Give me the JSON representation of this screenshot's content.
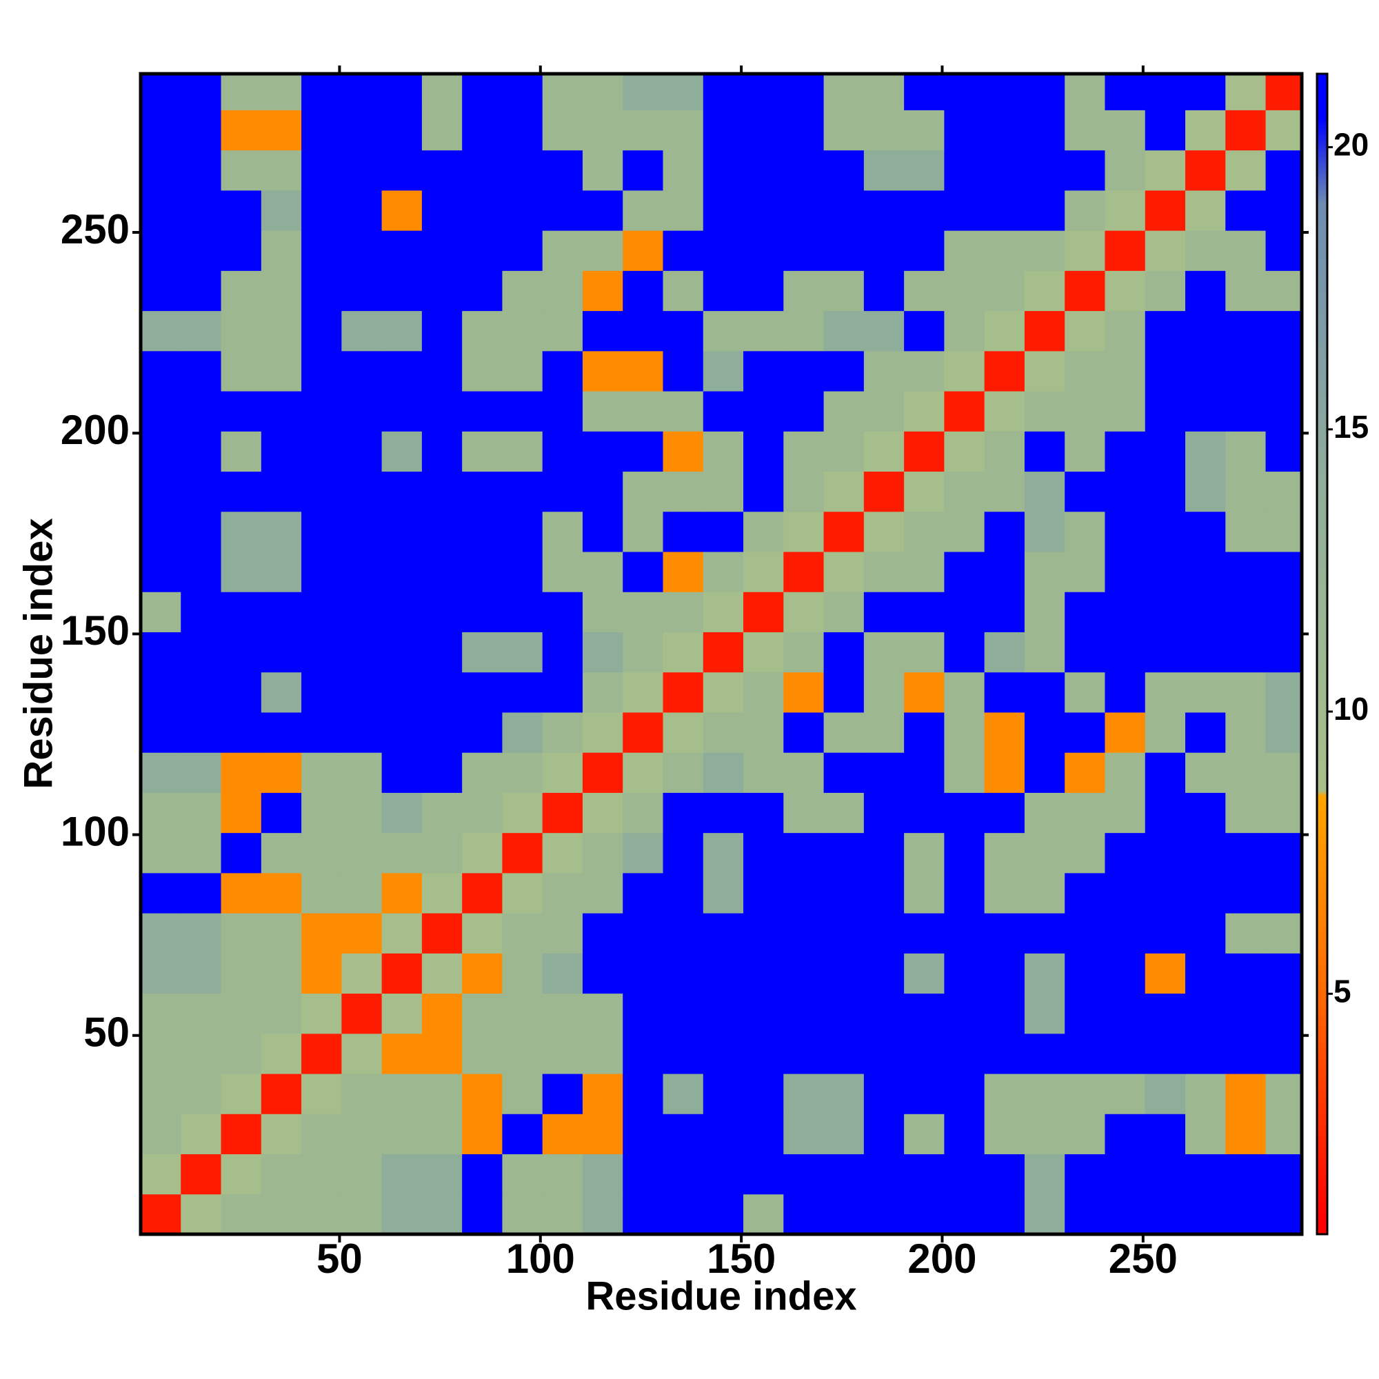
{
  "chart_data": {
    "type": "heatmap",
    "x_label": "Residue index",
    "y_label": "Residue index",
    "x": [
      5.5,
      15.5,
      25.5,
      35.5,
      45.5,
      55.5,
      65.5,
      75.5,
      85.5,
      95.5,
      105.5,
      115.5,
      125.5,
      135.5,
      145.5,
      155.5,
      165.5,
      175.5,
      185.5,
      195.5,
      205.5,
      215.5,
      225.5,
      235.5,
      245.5,
      255.5,
      265.5,
      275.5,
      285.5
    ],
    "y": [
      5.5,
      15.5,
      25.5,
      35.5,
      45.5,
      55.5,
      65.5,
      75.5,
      85.5,
      95.5,
      105.5,
      115.5,
      125.5,
      135.5,
      145.5,
      155.5,
      165.5,
      175.5,
      185.5,
      195.5,
      205.5,
      215.5,
      225.5,
      235.5,
      245.5,
      255.5,
      265.5,
      275.5,
      285.5
    ],
    "z": [
      [
        2,
        9,
        11,
        11,
        11,
        11,
        14,
        14,
        21,
        11,
        11,
        14,
        21,
        21,
        21,
        11,
        21,
        21,
        21,
        21,
        21,
        21,
        14,
        21,
        21,
        21,
        21,
        21,
        21
      ],
      [
        9,
        2,
        9,
        11,
        11,
        11,
        14,
        14,
        21,
        11,
        11,
        14,
        21,
        21,
        21,
        21,
        21,
        21,
        21,
        21,
        21,
        21,
        14,
        21,
        21,
        21,
        21,
        21,
        21
      ],
      [
        11,
        9,
        2,
        9,
        11,
        11,
        11,
        11,
        7,
        21,
        7,
        7,
        21,
        21,
        21,
        21,
        14,
        14,
        21,
        11,
        21,
        11,
        11,
        11,
        21,
        21,
        11,
        7,
        11
      ],
      [
        11,
        11,
        9,
        2,
        9,
        11,
        11,
        11,
        7,
        11,
        21,
        7,
        21,
        14,
        21,
        21,
        14,
        14,
        21,
        21,
        21,
        11,
        11,
        11,
        11,
        14,
        11,
        7,
        11
      ],
      [
        11,
        11,
        11,
        9,
        2,
        9,
        7,
        7,
        11,
        11,
        11,
        11,
        21,
        21,
        21,
        21,
        21,
        21,
        21,
        21,
        21,
        21,
        21,
        21,
        21,
        21,
        21,
        21,
        21
      ],
      [
        11,
        11,
        11,
        11,
        9,
        2,
        9,
        7,
        11,
        11,
        11,
        11,
        21,
        21,
        21,
        21,
        21,
        21,
        21,
        21,
        21,
        21,
        14,
        21,
        21,
        21,
        21,
        21,
        21
      ],
      [
        14,
        14,
        11,
        11,
        7,
        9,
        2,
        9,
        7,
        11,
        14,
        21,
        21,
        21,
        21,
        21,
        21,
        21,
        21,
        14,
        21,
        21,
        14,
        21,
        21,
        7,
        21,
        21,
        21
      ],
      [
        14,
        14,
        11,
        11,
        7,
        7,
        9,
        2,
        9,
        11,
        11,
        21,
        21,
        21,
        21,
        21,
        21,
        21,
        21,
        21,
        21,
        21,
        21,
        21,
        21,
        21,
        21,
        11,
        11
      ],
      [
        21,
        21,
        7,
        7,
        11,
        11,
        7,
        9,
        2,
        9,
        11,
        11,
        21,
        21,
        14,
        21,
        21,
        21,
        21,
        11,
        21,
        11,
        11,
        21,
        21,
        21,
        21,
        21,
        21
      ],
      [
        11,
        11,
        21,
        11,
        11,
        11,
        11,
        11,
        9,
        2,
        9,
        11,
        14,
        21,
        14,
        21,
        21,
        21,
        21,
        11,
        21,
        11,
        11,
        11,
        21,
        21,
        21,
        21,
        21
      ],
      [
        11,
        11,
        7,
        21,
        11,
        11,
        14,
        11,
        11,
        9,
        2,
        9,
        11,
        21,
        21,
        21,
        11,
        11,
        21,
        21,
        21,
        21,
        11,
        11,
        11,
        21,
        21,
        11,
        11
      ],
      [
        14,
        14,
        7,
        7,
        11,
        11,
        21,
        21,
        11,
        11,
        9,
        2,
        9,
        11,
        14,
        11,
        11,
        21,
        21,
        21,
        11,
        7,
        21,
        7,
        11,
        21,
        11,
        11,
        11
      ],
      [
        21,
        21,
        21,
        21,
        21,
        21,
        21,
        21,
        21,
        14,
        11,
        9,
        2,
        9,
        11,
        11,
        21,
        11,
        11,
        21,
        11,
        7,
        21,
        21,
        7,
        11,
        21,
        11,
        14
      ],
      [
        21,
        21,
        21,
        14,
        21,
        21,
        21,
        21,
        21,
        21,
        21,
        11,
        9,
        2,
        9,
        11,
        7,
        21,
        11,
        7,
        11,
        21,
        21,
        11,
        21,
        11,
        11,
        11,
        14
      ],
      [
        21,
        21,
        21,
        21,
        21,
        21,
        21,
        21,
        14,
        14,
        21,
        14,
        11,
        9,
        2,
        9,
        11,
        21,
        11,
        11,
        21,
        14,
        11,
        21,
        21,
        21,
        21,
        21,
        21
      ],
      [
        11,
        21,
        21,
        21,
        21,
        21,
        21,
        21,
        21,
        21,
        21,
        11,
        11,
        11,
        9,
        2,
        9,
        11,
        21,
        21,
        21,
        21,
        11,
        21,
        21,
        21,
        21,
        21,
        21
      ],
      [
        21,
        21,
        14,
        14,
        21,
        21,
        21,
        21,
        21,
        21,
        11,
        11,
        21,
        7,
        11,
        9,
        2,
        9,
        11,
        11,
        21,
        21,
        11,
        11,
        21,
        21,
        21,
        21,
        21
      ],
      [
        21,
        21,
        14,
        14,
        21,
        21,
        21,
        21,
        21,
        21,
        11,
        21,
        11,
        21,
        21,
        11,
        9,
        2,
        9,
        11,
        11,
        21,
        14,
        11,
        21,
        21,
        21,
        11,
        11
      ],
      [
        21,
        21,
        21,
        21,
        21,
        21,
        21,
        21,
        21,
        21,
        21,
        21,
        11,
        11,
        11,
        21,
        11,
        9,
        2,
        9,
        11,
        11,
        14,
        21,
        21,
        21,
        14,
        11,
        11
      ],
      [
        21,
        21,
        11,
        21,
        21,
        21,
        14,
        21,
        11,
        11,
        21,
        21,
        21,
        7,
        11,
        21,
        11,
        11,
        9,
        2,
        9,
        11,
        21,
        11,
        21,
        21,
        14,
        11,
        21
      ],
      [
        21,
        21,
        21,
        21,
        21,
        21,
        21,
        21,
        21,
        21,
        21,
        11,
        11,
        11,
        21,
        21,
        21,
        11,
        11,
        9,
        2,
        9,
        11,
        11,
        11,
        21,
        21,
        21,
        21
      ],
      [
        21,
        21,
        11,
        11,
        21,
        21,
        21,
        21,
        11,
        11,
        21,
        7,
        7,
        21,
        14,
        21,
        21,
        21,
        11,
        11,
        9,
        2,
        9,
        11,
        11,
        21,
        21,
        21,
        21
      ],
      [
        14,
        14,
        11,
        11,
        21,
        14,
        14,
        21,
        11,
        11,
        11,
        21,
        21,
        21,
        11,
        11,
        11,
        14,
        14,
        21,
        11,
        9,
        2,
        9,
        11,
        21,
        21,
        21,
        21
      ],
      [
        21,
        21,
        11,
        11,
        21,
        21,
        21,
        21,
        21,
        11,
        11,
        7,
        21,
        11,
        21,
        21,
        11,
        11,
        21,
        11,
        11,
        11,
        9,
        2,
        9,
        11,
        21,
        11,
        11
      ],
      [
        21,
        21,
        21,
        11,
        21,
        21,
        21,
        21,
        21,
        21,
        11,
        11,
        7,
        21,
        21,
        21,
        21,
        21,
        21,
        21,
        11,
        11,
        11,
        9,
        2,
        9,
        11,
        11,
        21
      ],
      [
        21,
        21,
        21,
        14,
        21,
        21,
        7,
        21,
        21,
        21,
        21,
        21,
        11,
        11,
        21,
        21,
        21,
        21,
        21,
        21,
        21,
        21,
        21,
        11,
        9,
        2,
        9,
        21,
        21
      ],
      [
        21,
        21,
        11,
        11,
        21,
        21,
        21,
        21,
        21,
        21,
        21,
        11,
        21,
        11,
        21,
        21,
        21,
        21,
        14,
        14,
        21,
        21,
        21,
        21,
        11,
        9,
        2,
        9,
        21
      ],
      [
        21,
        21,
        7,
        7,
        21,
        21,
        21,
        11,
        21,
        21,
        11,
        11,
        11,
        11,
        21,
        21,
        21,
        11,
        11,
        11,
        21,
        21,
        21,
        11,
        11,
        21,
        9,
        2,
        9
      ],
      [
        21,
        21,
        11,
        11,
        21,
        21,
        21,
        11,
        21,
        21,
        11,
        11,
        14,
        14,
        21,
        21,
        21,
        11,
        11,
        21,
        21,
        21,
        21,
        11,
        21,
        21,
        21,
        9,
        2
      ]
    ],
    "xlim": [
      0.5,
      289.5
    ],
    "ylim": [
      0.5,
      289.5
    ],
    "xticks": [
      50,
      100,
      150,
      200,
      250
    ],
    "yticks": [
      50,
      100,
      150,
      200,
      250
    ],
    "colorbar": {
      "lim": [
        0.74,
        21.3
      ],
      "ticks": [
        5,
        10,
        15,
        20
      ]
    },
    "colorscale": [
      [
        1,
        "#ff0000"
      ],
      [
        5,
        "#ff6a00"
      ],
      [
        8.5,
        "#ffa500"
      ],
      [
        8.6,
        "#a8bf8a"
      ],
      [
        14,
        "#8fae9a"
      ],
      [
        19,
        "#6f8cb0"
      ],
      [
        20.5,
        "#0000ff"
      ]
    ]
  }
}
